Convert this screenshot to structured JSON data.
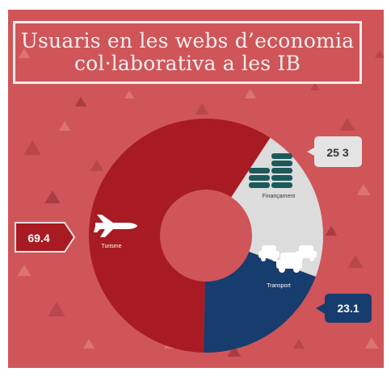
{
  "title": "Usuaris en les webs d’economia\ncol·laborativa a les IB",
  "colors": {
    "background": "#cf5559",
    "turisme": "#a81b22",
    "finançament": "#dcdcdc",
    "transport": "#173c6e"
  },
  "chart_data": {
    "type": "pie",
    "donut": true,
    "slices": [
      {
        "name": "Turisme",
        "value": 69.4,
        "icon": "airplane-icon"
      },
      {
        "name": "Finançament",
        "value": 25.3,
        "icon": "coins-icon"
      },
      {
        "name": "Transport",
        "value": 23.1,
        "icon": "cars-icon"
      }
    ],
    "labels": [
      "69.4",
      "25 3",
      "23.1"
    ]
  }
}
